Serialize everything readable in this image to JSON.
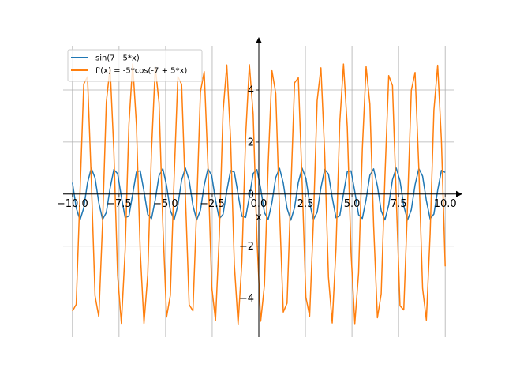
{
  "chart_data": {
    "type": "line",
    "xlabel": "x",
    "ylabel": "",
    "xlim": [
      -10.5,
      10.5
    ],
    "ylim": [
      -5.5,
      5.7
    ],
    "grid": true,
    "legend_position": "top-left",
    "x_ticks": [
      {
        "value": -10.0,
        "label": "−10.0"
      },
      {
        "value": -7.5,
        "label": "−7.5"
      },
      {
        "value": -5.0,
        "label": "−5.0"
      },
      {
        "value": -2.5,
        "label": "−2.5"
      },
      {
        "value": 0.0,
        "label": "0.0"
      },
      {
        "value": 2.5,
        "label": "2.5"
      },
      {
        "value": 5.0,
        "label": "5.0"
      },
      {
        "value": 7.5,
        "label": "7.5"
      },
      {
        "value": 10.0,
        "label": "10.0"
      }
    ],
    "y_ticks": [
      {
        "value": -4,
        "label": "−4"
      },
      {
        "value": -2,
        "label": "−2"
      },
      {
        "value": 0,
        "label": "0"
      },
      {
        "value": 2,
        "label": "2"
      },
      {
        "value": 4,
        "label": "4"
      }
    ],
    "series": [
      {
        "name": "sin(7 - 5*x)",
        "color": "#1f77b4",
        "expression": "sin(7 - 5*x)",
        "x_range": [
          -10,
          10
        ],
        "samples": 100
      },
      {
        "name": "f'(x) = -5*cos(-7 + 5*x)",
        "color": "#ff7f0e",
        "expression": "-5*cos(-7 + 5*x)",
        "x_range": [
          -10,
          10
        ],
        "samples": 100
      }
    ]
  }
}
